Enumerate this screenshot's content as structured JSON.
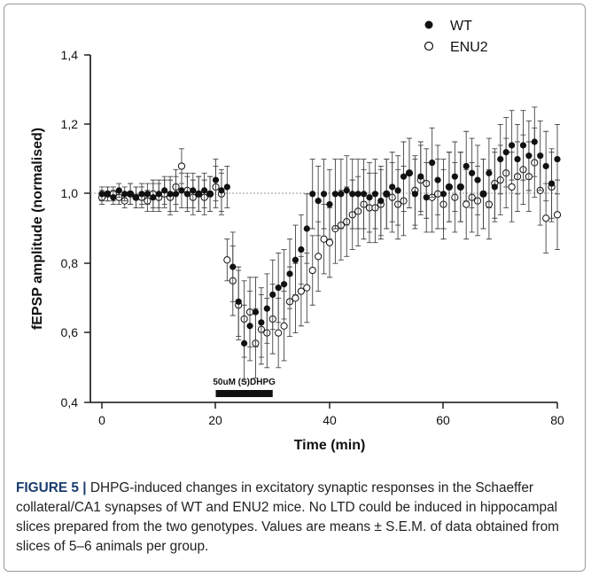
{
  "chart_data": {
    "type": "scatter",
    "xlabel": "Time (min)",
    "ylabel": "fEPSP amplitude (normalised)",
    "xlim": [
      -2,
      80
    ],
    "ylim": [
      0.4,
      1.4
    ],
    "x_ticks": [
      "0",
      "20",
      "40",
      "60",
      "80"
    ],
    "y_ticks": [
      "0,4",
      "0,6",
      "0,8",
      "1,0",
      "1,2",
      "1,4"
    ],
    "baseline": 1.0,
    "legend_position": "top-right",
    "drug_bar": {
      "label": "50uM (S)DHPG",
      "x_start": 20,
      "x_end": 30
    },
    "series": [
      {
        "name": "WT",
        "marker": "filled",
        "color": "#111111",
        "x": [
          0,
          1,
          2,
          3,
          4,
          5,
          6,
          7,
          8,
          9,
          10,
          11,
          12,
          13,
          14,
          15,
          16,
          17,
          18,
          19,
          20,
          21,
          22,
          23,
          24,
          25,
          26,
          27,
          28,
          29,
          30,
          31,
          32,
          33,
          34,
          35,
          36,
          37,
          38,
          39,
          40,
          41,
          42,
          43,
          44,
          45,
          46,
          47,
          48,
          49,
          50,
          51,
          52,
          53,
          54,
          55,
          56,
          57,
          58,
          59,
          60,
          61,
          62,
          63,
          64,
          65,
          66,
          67,
          68,
          69,
          70,
          71,
          72,
          73,
          74,
          75,
          76,
          77,
          78,
          79,
          80
        ],
        "y": [
          1.0,
          1.0,
          0.99,
          1.01,
          1.0,
          1.0,
          0.99,
          1.0,
          1.0,
          0.99,
          1.0,
          1.01,
          1.0,
          1.0,
          1.01,
          1.0,
          1.01,
          1.0,
          1.01,
          1.0,
          1.04,
          1.01,
          1.02,
          0.79,
          0.69,
          0.57,
          0.62,
          0.66,
          0.63,
          0.67,
          0.71,
          0.73,
          0.74,
          0.77,
          0.81,
          0.84,
          0.9,
          1.0,
          0.98,
          1.0,
          0.97,
          1.0,
          1.0,
          1.01,
          1.0,
          1.0,
          1.0,
          0.99,
          1.0,
          0.98,
          1.0,
          1.02,
          1.01,
          1.05,
          1.06,
          1.0,
          1.05,
          0.99,
          1.09,
          1.04,
          1.0,
          1.02,
          1.05,
          1.02,
          1.08,
          1.06,
          1.04,
          1.0,
          1.06,
          1.02,
          1.1,
          1.12,
          1.14,
          1.1,
          1.14,
          1.11,
          1.15,
          1.11,
          1.08,
          1.03,
          1.1
        ],
        "errors": [
          0.02,
          0.02,
          0.02,
          0.02,
          0.02,
          0.03,
          0.03,
          0.03,
          0.03,
          0.04,
          0.04,
          0.04,
          0.05,
          0.05,
          0.05,
          0.05,
          0.05,
          0.05,
          0.05,
          0.05,
          0.06,
          0.06,
          0.06,
          0.1,
          0.1,
          0.11,
          0.1,
          0.1,
          0.1,
          0.1,
          0.1,
          0.1,
          0.1,
          0.1,
          0.1,
          0.1,
          0.1,
          0.1,
          0.1,
          0.1,
          0.1,
          0.1,
          0.1,
          0.1,
          0.1,
          0.1,
          0.1,
          0.1,
          0.1,
          0.1,
          0.1,
          0.1,
          0.1,
          0.1,
          0.1,
          0.1,
          0.1,
          0.1,
          0.1,
          0.1,
          0.1,
          0.1,
          0.1,
          0.1,
          0.1,
          0.1,
          0.1,
          0.1,
          0.1,
          0.1,
          0.1,
          0.1,
          0.1,
          0.1,
          0.1,
          0.1,
          0.1,
          0.1,
          0.1,
          0.1,
          0.1
        ]
      },
      {
        "name": "ENU2",
        "marker": "open",
        "color": "#111111",
        "x": [
          0,
          1,
          2,
          3,
          4,
          5,
          6,
          7,
          8,
          9,
          10,
          11,
          12,
          13,
          14,
          15,
          16,
          17,
          18,
          19,
          20,
          21,
          22,
          23,
          24,
          25,
          26,
          27,
          28,
          29,
          30,
          31,
          32,
          33,
          34,
          35,
          36,
          37,
          38,
          39,
          40,
          41,
          42,
          43,
          44,
          45,
          46,
          47,
          48,
          49,
          50,
          51,
          52,
          53,
          54,
          55,
          56,
          57,
          58,
          59,
          60,
          61,
          62,
          63,
          64,
          65,
          66,
          67,
          68,
          69,
          70,
          71,
          72,
          73,
          74,
          75,
          76,
          77,
          78,
          79,
          80
        ],
        "y": [
          0.99,
          1.0,
          1.0,
          0.99,
          0.98,
          1.0,
          0.99,
          0.99,
          0.98,
          1.0,
          0.99,
          1.0,
          0.99,
          1.02,
          1.08,
          1.01,
          0.99,
          1.0,
          0.99,
          1.0,
          1.02,
          1.0,
          0.81,
          0.75,
          0.68,
          0.64,
          0.66,
          0.57,
          0.61,
          0.6,
          0.64,
          0.6,
          0.62,
          0.69,
          0.7,
          0.72,
          0.73,
          0.78,
          0.82,
          0.87,
          0.86,
          0.9,
          0.91,
          0.92,
          0.94,
          0.95,
          0.97,
          0.96,
          0.96,
          0.97,
          1.0,
          0.99,
          0.97,
          0.98,
          1.06,
          1.01,
          1.04,
          1.03,
          0.99,
          1.0,
          0.97,
          1.02,
          0.99,
          1.02,
          0.97,
          0.99,
          0.98,
          1.0,
          0.97,
          1.03,
          1.04,
          1.06,
          1.02,
          1.05,
          1.07,
          1.05,
          1.09,
          1.01,
          0.93,
          1.02,
          0.94
        ],
        "errors": [
          0.02,
          0.02,
          0.02,
          0.02,
          0.02,
          0.03,
          0.03,
          0.03,
          0.03,
          0.04,
          0.04,
          0.04,
          0.05,
          0.05,
          0.05,
          0.05,
          0.05,
          0.05,
          0.05,
          0.05,
          0.06,
          0.06,
          0.06,
          0.1,
          0.1,
          0.11,
          0.1,
          0.1,
          0.1,
          0.1,
          0.1,
          0.1,
          0.1,
          0.1,
          0.1,
          0.1,
          0.1,
          0.1,
          0.1,
          0.1,
          0.1,
          0.1,
          0.1,
          0.1,
          0.1,
          0.1,
          0.1,
          0.1,
          0.1,
          0.1,
          0.1,
          0.1,
          0.1,
          0.1,
          0.1,
          0.1,
          0.1,
          0.1,
          0.1,
          0.1,
          0.1,
          0.1,
          0.1,
          0.1,
          0.1,
          0.1,
          0.1,
          0.1,
          0.1,
          0.1,
          0.1,
          0.1,
          0.1,
          0.1,
          0.1,
          0.1,
          0.1,
          0.1,
          0.1,
          0.1,
          0.1
        ]
      }
    ]
  },
  "caption": {
    "label": "FIGURE 5 |",
    "text": " DHPG-induced changes in excitatory synaptic responses in the Schaeffer collateral/CA1 synapses of WT and ENU2 mice. No LTD could be induced in hippocampal slices prepared from the two genotypes. Values are means ± S.E.M. of data obtained from slices of 5–6 animals per group."
  }
}
